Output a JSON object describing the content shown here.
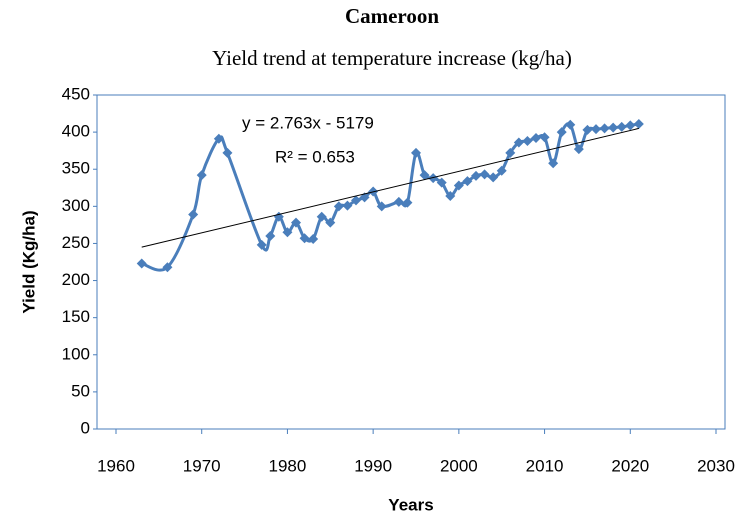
{
  "chart_data": {
    "type": "line",
    "title": "Cameroon",
    "subtitle": "Yield trend at temperature increase (kg/ha)",
    "xlabel": "Years",
    "ylabel": "Yield (Kg/ha)",
    "annotations": [
      "y = 2.763x - 5179",
      "R² = 0.653"
    ],
    "x": [
      1963,
      1966,
      1969,
      1970,
      1972,
      1973,
      1977,
      1978,
      1979,
      1980,
      1981,
      1982,
      1983,
      1984,
      1985,
      1986,
      1987,
      1988,
      1989,
      1990,
      1991,
      1993,
      1994,
      1995,
      1996,
      1997,
      1998,
      1999,
      2000,
      2001,
      2002,
      2003,
      2004,
      2005,
      2006,
      2007,
      2008,
      2009,
      2010,
      2011,
      2012,
      2013,
      2014,
      2015,
      2016,
      2017,
      2018,
      2019,
      2020,
      2021
    ],
    "series": [
      {
        "name": "Yield",
        "color": "#4a7ebb",
        "values": [
          223,
          218,
          289,
          342,
          391,
          372,
          248,
          260,
          286,
          265,
          278,
          257,
          256,
          286,
          278,
          300,
          301,
          308,
          312,
          320,
          300,
          306,
          305,
          372,
          342,
          338,
          332,
          314,
          328,
          334,
          341,
          343,
          339,
          348,
          372,
          386,
          388,
          392,
          393,
          358,
          400,
          410,
          377,
          403,
          404,
          405,
          406,
          407,
          409,
          411
        ]
      }
    ],
    "trendline": {
      "x": [
        1963,
        2021
      ],
      "values": [
        245,
        405
      ],
      "color": "#000000"
    },
    "xlim": [
      1960,
      2030
    ],
    "xticks": [
      1960,
      1970,
      1980,
      1990,
      2000,
      2010,
      2020,
      2030
    ],
    "ylim": [
      0,
      450
    ],
    "yticks": [
      0,
      50,
      100,
      150,
      200,
      250,
      300,
      350,
      400,
      450
    ]
  }
}
